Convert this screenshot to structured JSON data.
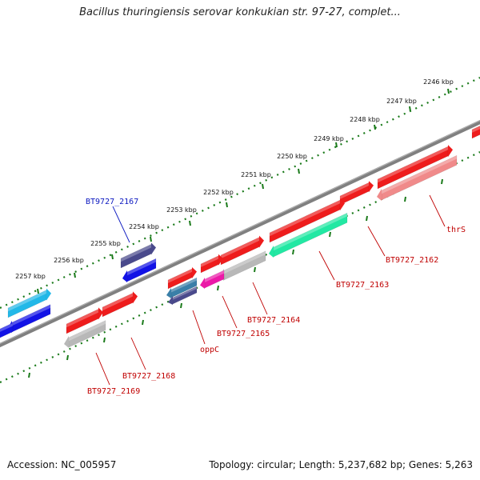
{
  "title": "Bacillus thuringiensis serovar konkukian str. 97-27, complet...",
  "footer": {
    "accession": "Accession: NC_005957",
    "summary": "Topology: circular; Length: 5,237,682 bp; Genes: 5,263"
  },
  "scale": {
    "unit": "kbp",
    "ticks": [
      "2246 kbp",
      "2247 kbp",
      "2248 kbp",
      "2249 kbp",
      "2250 kbp",
      "2251 kbp",
      "2252 kbp",
      "2253 kbp",
      "2254 kbp",
      "2255 kbp",
      "2256 kbp",
      "2257 kbp"
    ]
  },
  "genes": [
    {
      "label": "BT9727_2167",
      "color": "#1f23c8",
      "label_color": "#0b18c0"
    },
    {
      "label": "thrS",
      "color": "#f08a8a",
      "label_color": "#c00000"
    },
    {
      "label": "BT9727_2162",
      "color": "#ee1c1c",
      "label_color": "#c00000"
    },
    {
      "label": "BT9727_2163",
      "color": "#22e8a3",
      "label_color": "#c00000"
    },
    {
      "label": "BT9727_2164",
      "color": "#b8b8b8",
      "label_color": "#c00000"
    },
    {
      "label": "BT9727_2165",
      "color": "#ec1aa8",
      "label_color": "#c00000"
    },
    {
      "label": "oppC",
      "color": "#4a4a8c",
      "label_color": "#c00000"
    },
    {
      "label": "BT9727_2168",
      "color": "#ee1c1c",
      "label_color": "#c00000"
    },
    {
      "label": "BT9727_2169",
      "color": "#b8b8b8",
      "label_color": "#c00000"
    }
  ],
  "colors": {
    "backbone": "#808080",
    "scale_ring": "#1a7a1a",
    "forward_red": "#ee1c1c",
    "dark_blue": "#4a4a8c",
    "blue": "#1212e6",
    "cyan": "#22b8e8",
    "teal": "#3a7fa8"
  }
}
